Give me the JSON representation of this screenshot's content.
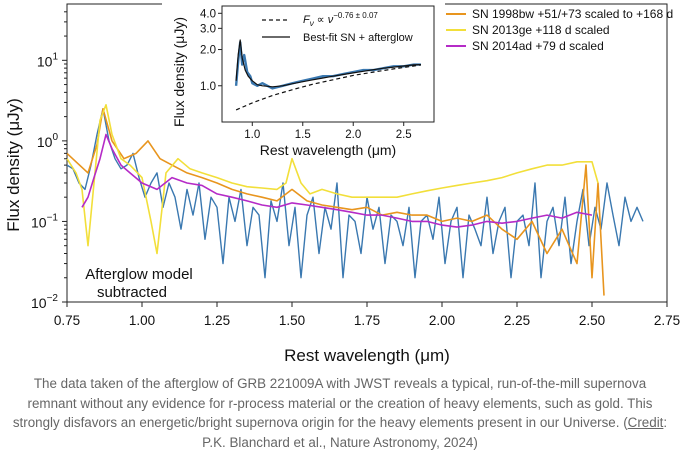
{
  "chart_data": [
    {
      "type": "line",
      "name": "main",
      "xlabel": "Rest wavelength (μm)",
      "ylabel": "Flux density (μJy)",
      "xlim": [
        0.75,
        2.75
      ],
      "ylim": [
        0.01,
        50
      ],
      "yscale": "log",
      "xticks": [
        "0.75",
        "1.00",
        "1.25",
        "1.50",
        "1.75",
        "2.00",
        "2.25",
        "2.50",
        "2.75"
      ],
      "yticks": [
        {
          "value": 0.01,
          "base": "10",
          "exp": "−2"
        },
        {
          "value": 0.1,
          "base": "10",
          "exp": "−1"
        },
        {
          "value": 1,
          "base": "10",
          "exp": "0"
        },
        {
          "value": 10,
          "base": "10",
          "exp": "1"
        }
      ],
      "annotation": [
        "Afterglow model",
        "subtracted"
      ],
      "legend_position": "top-right",
      "series": [
        {
          "name": "SN 1998bw +51/+73 scaled to +168 d",
          "color": "#e8951e",
          "x": [
            0.75,
            0.78,
            0.82,
            0.85,
            0.87,
            0.9,
            0.94,
            0.98,
            1.02,
            1.06,
            1.1,
            1.15,
            1.2,
            1.25,
            1.3,
            1.35,
            1.4,
            1.45,
            1.5,
            1.55,
            1.6,
            1.65,
            1.7,
            1.75,
            1.8,
            1.85,
            1.9,
            1.95,
            2.0,
            2.05,
            2.1,
            2.15,
            2.2,
            2.25,
            2.3,
            2.35,
            2.4,
            2.45,
            2.48,
            2.5,
            2.52,
            2.54
          ],
          "y": [
            0.7,
            0.55,
            0.4,
            0.9,
            2.5,
            1.0,
            0.6,
            0.7,
            1.0,
            0.6,
            0.5,
            0.4,
            0.35,
            0.3,
            0.25,
            0.22,
            0.2,
            0.18,
            0.25,
            0.18,
            0.16,
            0.15,
            0.14,
            0.15,
            0.12,
            0.13,
            0.12,
            0.12,
            0.1,
            0.11,
            0.1,
            0.12,
            0.08,
            0.06,
            0.1,
            0.04,
            0.08,
            0.03,
            0.5,
            0.02,
            0.3,
            0.012
          ]
        },
        {
          "name": "SN 2013ge +118 d scaled",
          "color": "#f2df3a",
          "x": [
            0.75,
            0.78,
            0.8,
            0.82,
            0.84,
            0.86,
            0.88,
            0.9,
            0.93,
            0.96,
            1.0,
            1.03,
            1.05,
            1.08,
            1.12,
            1.16,
            1.2,
            1.25,
            1.3,
            1.35,
            1.4,
            1.45,
            1.48,
            1.5,
            1.53,
            1.56,
            1.6,
            1.65,
            1.7,
            1.75,
            1.8,
            1.85,
            1.9,
            1.95,
            2.0,
            2.05,
            2.1,
            2.15,
            2.2,
            2.25,
            2.3,
            2.35,
            2.4,
            2.45,
            2.5,
            2.52
          ],
          "y": [
            0.6,
            0.4,
            0.25,
            0.05,
            0.3,
            1.8,
            2.8,
            1.2,
            0.6,
            0.5,
            0.35,
            0.1,
            0.04,
            0.4,
            0.6,
            0.45,
            0.4,
            0.35,
            0.3,
            0.27,
            0.26,
            0.25,
            0.3,
            0.6,
            0.3,
            0.22,
            0.25,
            0.22,
            0.2,
            0.2,
            0.2,
            0.2,
            0.22,
            0.24,
            0.26,
            0.28,
            0.3,
            0.32,
            0.35,
            0.4,
            0.45,
            0.5,
            0.5,
            0.55,
            0.55,
            0.3
          ]
        },
        {
          "name": "SN 2014ad +79 d scaled",
          "color": "#b52bc7",
          "x": [
            0.8,
            0.82,
            0.84,
            0.86,
            0.88,
            0.9,
            0.93,
            0.96,
            1.0,
            1.05,
            1.1,
            1.15,
            1.2,
            1.25,
            1.3,
            1.35,
            1.4,
            1.45,
            1.5,
            1.55,
            1.6,
            1.65,
            1.7,
            1.75,
            1.8,
            1.85,
            1.9,
            1.95,
            2.0,
            2.05,
            2.1,
            2.15,
            2.2,
            2.25,
            2.3,
            2.35,
            2.4,
            2.45,
            2.5
          ],
          "y": [
            0.15,
            0.2,
            0.35,
            0.6,
            1.2,
            0.8,
            0.5,
            0.4,
            0.3,
            0.25,
            0.35,
            0.3,
            0.28,
            0.22,
            0.2,
            0.18,
            0.16,
            0.15,
            0.17,
            0.16,
            0.15,
            0.14,
            0.13,
            0.12,
            0.12,
            0.11,
            0.1,
            0.1,
            0.09,
            0.085,
            0.09,
            0.1,
            0.095,
            0.1,
            0.11,
            0.12,
            0.11,
            0.13,
            0.12
          ]
        },
        {
          "name": "",
          "color": "#3a78b0",
          "x": [
            0.75,
            0.77,
            0.79,
            0.81,
            0.83,
            0.85,
            0.87,
            0.89,
            0.91,
            0.93,
            0.95,
            0.97,
            0.99,
            1.01,
            1.03,
            1.05,
            1.07,
            1.09,
            1.11,
            1.13,
            1.15,
            1.17,
            1.19,
            1.21,
            1.23,
            1.25,
            1.27,
            1.29,
            1.31,
            1.33,
            1.35,
            1.37,
            1.39,
            1.41,
            1.43,
            1.45,
            1.47,
            1.49,
            1.51,
            1.53,
            1.55,
            1.57,
            1.59,
            1.61,
            1.63,
            1.65,
            1.67,
            1.69,
            1.71,
            1.73,
            1.75,
            1.77,
            1.79,
            1.81,
            1.83,
            1.85,
            1.87,
            1.89,
            1.91,
            1.93,
            1.95,
            1.97,
            1.99,
            2.01,
            2.03,
            2.05,
            2.07,
            2.09,
            2.11,
            2.13,
            2.15,
            2.17,
            2.19,
            2.21,
            2.23,
            2.25,
            2.27,
            2.29,
            2.31,
            2.33,
            2.35,
            2.37,
            2.39,
            2.41,
            2.43,
            2.45,
            2.47,
            2.49,
            2.51,
            2.53,
            2.55,
            2.57,
            2.59,
            2.61,
            2.63,
            2.65,
            2.67
          ],
          "y": [
            0.5,
            0.45,
            0.3,
            0.25,
            0.5,
            1.2,
            2.5,
            1.0,
            0.6,
            0.45,
            0.5,
            0.7,
            0.35,
            0.2,
            0.3,
            0.4,
            0.15,
            0.3,
            0.2,
            0.08,
            0.25,
            0.12,
            0.3,
            0.06,
            0.2,
            0.15,
            0.03,
            0.2,
            0.1,
            0.25,
            0.05,
            0.15,
            0.12,
            0.02,
            0.18,
            0.1,
            0.3,
            0.05,
            0.15,
            0.02,
            0.12,
            0.2,
            0.04,
            0.15,
            0.08,
            0.3,
            0.02,
            0.12,
            0.1,
            0.04,
            0.2,
            0.08,
            0.15,
            0.03,
            0.12,
            0.1,
            0.05,
            0.15,
            0.02,
            0.1,
            0.12,
            0.06,
            0.2,
            0.03,
            0.1,
            0.15,
            0.02,
            0.12,
            0.08,
            0.05,
            0.2,
            0.04,
            0.1,
            0.15,
            0.02,
            0.1,
            0.12,
            0.05,
            0.3,
            0.02,
            0.1,
            0.15,
            0.05,
            0.2,
            0.03,
            0.1,
            0.25,
            0.05,
            0.15,
            0.08,
            0.3,
            0.12,
            0.05,
            0.2,
            0.1,
            0.15,
            0.1
          ]
        }
      ]
    },
    {
      "type": "line",
      "name": "inset",
      "xlabel": "Rest wavelength (μm)",
      "ylabel": "Flux density (μJy)",
      "xlim": [
        0.7,
        2.8
      ],
      "ylim": [
        0.5,
        4.6
      ],
      "yscale": "log",
      "xticks": [
        "1.0",
        "1.5",
        "2.0",
        "2.5"
      ],
      "yticks": [
        "1.0",
        "2.0",
        "3.0",
        "4.0"
      ],
      "legend": [
        {
          "style": "dashed",
          "label_pre": "F",
          "label_sub": "ν",
          "label_mid": " ∝ ν",
          "label_sup": "−0.76 ± 0.07"
        },
        {
          "style": "solid",
          "label": "Best-fit SN + afterglow"
        }
      ],
      "series": [
        {
          "name": "",
          "color": "#3a78b0",
          "x": [
            0.84,
            0.86,
            0.88,
            0.9,
            0.92,
            0.95,
            0.98,
            1.0,
            1.05,
            1.1,
            1.15,
            1.2,
            1.3,
            1.4,
            1.5,
            1.6,
            1.7,
            1.8,
            1.9,
            2.0,
            2.1,
            2.2,
            2.3,
            2.4,
            2.5,
            2.6,
            2.67
          ],
          "y": [
            1.0,
            1.6,
            2.3,
            1.5,
            1.8,
            1.3,
            1.2,
            1.05,
            1.0,
            1.05,
            1.0,
            0.95,
            1.0,
            1.05,
            1.1,
            1.15,
            1.2,
            1.2,
            1.25,
            1.3,
            1.35,
            1.35,
            1.4,
            1.45,
            1.45,
            1.5,
            1.5
          ]
        },
        {
          "name": "Best-fit SN + afterglow",
          "color": "#111111",
          "x": [
            0.84,
            0.86,
            0.88,
            0.9,
            0.93,
            0.96,
            1.0,
            1.05,
            1.1,
            1.2,
            1.3,
            1.4,
            1.5,
            1.6,
            1.7,
            1.8,
            1.9,
            2.0,
            2.1,
            2.2,
            2.3,
            2.4,
            2.5,
            2.6,
            2.67
          ],
          "y": [
            1.1,
            1.8,
            2.4,
            1.7,
            1.35,
            1.2,
            1.1,
            1.02,
            1.0,
            0.98,
            1.0,
            1.04,
            1.08,
            1.12,
            1.16,
            1.2,
            1.24,
            1.28,
            1.32,
            1.36,
            1.4,
            1.43,
            1.46,
            1.49,
            1.5
          ]
        },
        {
          "name": "",
          "color": "#111111",
          "dashed": true,
          "x": [
            0.84,
            1.0,
            1.2,
            1.4,
            1.6,
            1.8,
            2.0,
            2.2,
            2.4,
            2.6,
            2.67
          ],
          "y": [
            0.63,
            0.72,
            0.83,
            0.93,
            1.03,
            1.12,
            1.22,
            1.3,
            1.38,
            1.46,
            1.49
          ]
        }
      ]
    }
  ],
  "caption": {
    "text": "The data taken of the afterglow of GRB 221009A with JWST reveals a typical, run-of-the-mill supernova remnant without any evidence for r-process material or the creation of heavy elements, such as gold. This strongly disfavors an energetic/bright supernova origin for the heavy elements present in our Universe.",
    "credit_open": "(",
    "credit_link": "Credit",
    "credit_rest": ": P.K. Blanchard et al., Nature Astronomy, 2024)"
  }
}
